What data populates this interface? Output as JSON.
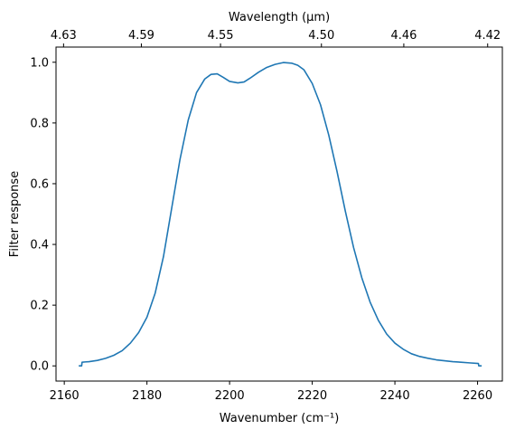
{
  "chart_data": {
    "type": "line",
    "xlabel": "Wavenumber (cm⁻¹)",
    "ylabel": "Filter response",
    "top_xlabel": "Wavelength (μm)",
    "xlim": [
      2158,
      2266
    ],
    "ylim": [
      -0.05,
      1.05
    ],
    "grid": false,
    "legend": "none",
    "x_ticks": [
      2160,
      2180,
      2200,
      2220,
      2240,
      2260
    ],
    "x_tick_labels": [
      "2160",
      "2180",
      "2200",
      "2220",
      "2240",
      "2260"
    ],
    "y_ticks": [
      0.0,
      0.2,
      0.4,
      0.6,
      0.8,
      1.0
    ],
    "y_tick_labels": [
      "0.0",
      "0.2",
      "0.4",
      "0.6",
      "0.8",
      "1.0"
    ],
    "top_ticks": [
      {
        "label": "4.63",
        "wavelength_um": 4.63
      },
      {
        "label": "4.59",
        "wavelength_um": 4.59
      },
      {
        "label": "4.55",
        "wavelength_um": 4.55
      },
      {
        "label": "4.50",
        "wavelength_um": 4.5
      },
      {
        "label": "4.46",
        "wavelength_um": 4.46
      },
      {
        "label": "4.42",
        "wavelength_um": 4.42
      }
    ],
    "series": [
      {
        "color": "#1f77b4",
        "x": [
          2163.5,
          2164.2,
          2164.3,
          2165,
          2166,
          2168,
          2170,
          2172,
          2174,
          2176,
          2178,
          2180,
          2182,
          2184,
          2186,
          2188,
          2190,
          2192,
          2194,
          2195.5,
          2197,
          2198.5,
          2200,
          2202,
          2203.5,
          2205,
          2207,
          2209,
          2211,
          2213,
          2215,
          2216.5,
          2218,
          2220,
          2222,
          2224,
          2226,
          2228,
          2230,
          2232,
          2234,
          2236,
          2238,
          2240,
          2242,
          2244,
          2246,
          2248,
          2250,
          2252,
          2254,
          2256,
          2258,
          2260.2,
          2260.3,
          2261
        ],
        "y": [
          0.0,
          0.0,
          0.012,
          0.013,
          0.014,
          0.018,
          0.025,
          0.035,
          0.05,
          0.075,
          0.11,
          0.16,
          0.24,
          0.36,
          0.52,
          0.68,
          0.81,
          0.9,
          0.945,
          0.96,
          0.962,
          0.95,
          0.937,
          0.932,
          0.935,
          0.948,
          0.967,
          0.983,
          0.993,
          0.999,
          0.997,
          0.99,
          0.975,
          0.93,
          0.86,
          0.76,
          0.64,
          0.51,
          0.39,
          0.29,
          0.21,
          0.15,
          0.105,
          0.075,
          0.055,
          0.04,
          0.031,
          0.025,
          0.02,
          0.017,
          0.014,
          0.012,
          0.01,
          0.008,
          0.0,
          0.0
        ]
      }
    ]
  }
}
